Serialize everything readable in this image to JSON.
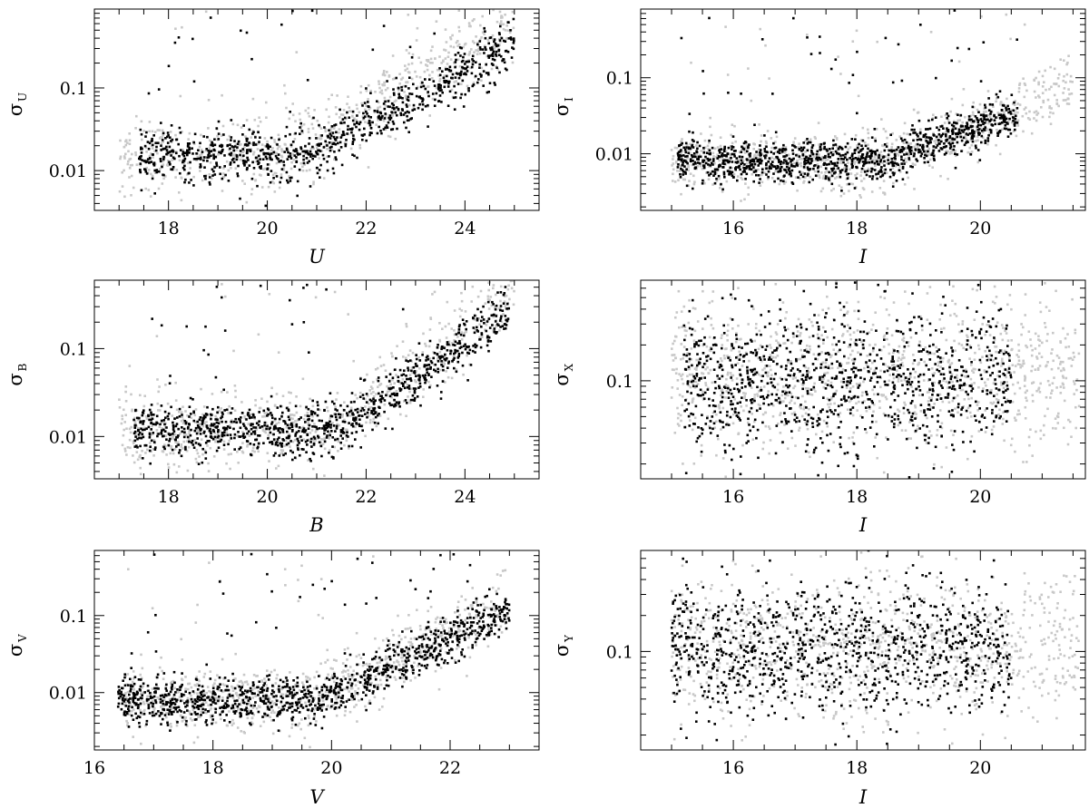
{
  "colors": {
    "background": "#ffffff",
    "axes": "#000000",
    "primary_points": "#000000",
    "secondary_points": "#c8c8c8"
  },
  "chart_data": [
    {
      "type": "scatter",
      "id": "sigU-vs-U",
      "xlabel": "U",
      "ylabel_symbol": "σ",
      "ylabel_sub": "U",
      "yscale": "log",
      "xlim": [
        16.5,
        25.5
      ],
      "ylim": [
        0.0033,
        0.9
      ],
      "xticks": [
        18,
        20,
        22,
        24
      ],
      "xticklabels": [
        "18",
        "20",
        "22",
        "24"
      ],
      "yticks": [
        0.01,
        0.1
      ],
      "yticklabels": [
        "0.01",
        "0.1"
      ],
      "series": [
        {
          "role": "black",
          "trend": {
            "xmin": 17.4,
            "xmax": 25.0,
            "base": 0.015,
            "knee": 20.8,
            "slope": 0.32,
            "scatter": 0.16,
            "count": 900
          }
        },
        {
          "role": "grey",
          "trend": {
            "xmin": 17.0,
            "xmax": 25.0,
            "base": 0.014,
            "knee": 20.2,
            "slope": 0.34,
            "scatter": 0.22,
            "count": 700
          }
        }
      ]
    },
    {
      "type": "scatter",
      "id": "sigI-vs-I",
      "xlabel": "I",
      "ylabel_symbol": "σ",
      "ylabel_sub": "I",
      "yscale": "log",
      "xlim": [
        14.5,
        21.7
      ],
      "ylim": [
        0.0018,
        0.8
      ],
      "xticks": [
        16,
        18,
        20
      ],
      "xticklabels": [
        "16",
        "18",
        "20"
      ],
      "yticks": [
        0.01,
        0.1
      ],
      "yticklabels": [
        "0.01",
        "0.1"
      ],
      "series": [
        {
          "role": "black",
          "trend": {
            "xmin": 15.1,
            "xmax": 20.6,
            "base": 0.008,
            "knee": 18.4,
            "slope": 0.28,
            "scatter": 0.14,
            "count": 1100
          }
        },
        {
          "role": "grey",
          "trend": {
            "xmin": 15.0,
            "xmax": 21.5,
            "base": 0.008,
            "knee": 18.6,
            "slope": 0.35,
            "scatter": 0.2,
            "count": 800
          }
        }
      ]
    },
    {
      "type": "scatter",
      "id": "sigB-vs-B",
      "xlabel": "B",
      "ylabel_symbol": "σ",
      "ylabel_sub": "B",
      "yscale": "log",
      "xlim": [
        16.5,
        25.5
      ],
      "ylim": [
        0.0033,
        0.6
      ],
      "xticks": [
        18,
        20,
        22,
        24
      ],
      "xticklabels": [
        "18",
        "20",
        "22",
        "24"
      ],
      "yticks": [
        0.01,
        0.1
      ],
      "yticklabels": [
        "0.01",
        "0.1"
      ],
      "series": [
        {
          "role": "black",
          "trend": {
            "xmin": 17.3,
            "xmax": 24.9,
            "base": 0.012,
            "knee": 21.5,
            "slope": 0.4,
            "scatter": 0.15,
            "count": 1000
          }
        },
        {
          "role": "grey",
          "trend": {
            "xmin": 17.0,
            "xmax": 25.0,
            "base": 0.012,
            "knee": 21.3,
            "slope": 0.42,
            "scatter": 0.22,
            "count": 700
          }
        }
      ]
    },
    {
      "type": "scatter",
      "id": "sigX-vs-I",
      "xlabel": "I",
      "ylabel_symbol": "σ",
      "ylabel_sub": "X",
      "yscale": "log",
      "xlim": [
        14.5,
        21.7
      ],
      "ylim": [
        0.015,
        0.7
      ],
      "xticks": [
        16,
        18,
        20
      ],
      "xticklabels": [
        "16",
        "18",
        "20"
      ],
      "yticks": [
        0.1
      ],
      "yticklabels": [
        "0.1"
      ],
      "series": [
        {
          "role": "black",
          "trend": {
            "xmin": 15.2,
            "xmax": 20.5,
            "base": 0.1,
            "knee": 30,
            "slope": 0.0,
            "scatter": 0.3,
            "count": 1000
          }
        },
        {
          "role": "grey",
          "trend": {
            "xmin": 15.0,
            "xmax": 21.6,
            "base": 0.11,
            "knee": 30,
            "slope": 0.0,
            "scatter": 0.32,
            "count": 1100
          }
        }
      ]
    },
    {
      "type": "scatter",
      "id": "sigV-vs-V",
      "xlabel": "V",
      "ylabel_symbol": "σ",
      "ylabel_sub": "V",
      "yscale": "log",
      "xlim": [
        16.0,
        23.5
      ],
      "ylim": [
        0.0018,
        0.7
      ],
      "xticks": [
        16,
        18,
        20,
        22
      ],
      "xticklabels": [
        "16",
        "18",
        "20",
        "22"
      ],
      "yticks": [
        0.01,
        0.1
      ],
      "yticklabels": [
        "0.01",
        "0.1"
      ],
      "series": [
        {
          "role": "black",
          "trend": {
            "xmin": 16.4,
            "xmax": 23.0,
            "base": 0.008,
            "knee": 19.8,
            "slope": 0.36,
            "scatter": 0.15,
            "count": 1100
          }
        },
        {
          "role": "grey",
          "trend": {
            "xmin": 16.5,
            "xmax": 23.0,
            "base": 0.008,
            "knee": 19.8,
            "slope": 0.4,
            "scatter": 0.22,
            "count": 800
          }
        }
      ]
    },
    {
      "type": "scatter",
      "id": "sigY-vs-I",
      "xlabel": "I",
      "ylabel_symbol": "σ",
      "ylabel_sub": "Y",
      "yscale": "log",
      "xlim": [
        14.5,
        21.7
      ],
      "ylim": [
        0.015,
        0.7
      ],
      "xticks": [
        16,
        18,
        20
      ],
      "xticklabels": [
        "16",
        "18",
        "20"
      ],
      "yticks": [
        0.1
      ],
      "yticklabels": [
        "0.1"
      ],
      "series": [
        {
          "role": "black",
          "trend": {
            "xmin": 15.0,
            "xmax": 20.5,
            "base": 0.1,
            "knee": 30,
            "slope": 0.0,
            "scatter": 0.28,
            "count": 1000
          }
        },
        {
          "role": "grey",
          "trend": {
            "xmin": 15.0,
            "xmax": 21.6,
            "base": 0.11,
            "knee": 30,
            "slope": 0.0,
            "scatter": 0.3,
            "count": 1000
          }
        }
      ]
    }
  ]
}
